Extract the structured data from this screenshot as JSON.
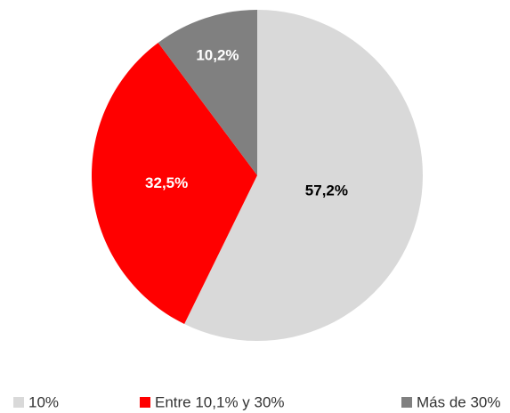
{
  "chart_data": {
    "type": "pie",
    "categories": [
      "10%",
      "Entre 10,1% y 30%",
      "Más de 30%"
    ],
    "values": [
      57.2,
      32.5,
      10.2
    ],
    "value_labels": [
      "57,2%",
      "32,5%",
      "10,2%"
    ],
    "colors": [
      "#d9d9d9",
      "#ff0000",
      "#808080"
    ],
    "legend": "bottom"
  }
}
